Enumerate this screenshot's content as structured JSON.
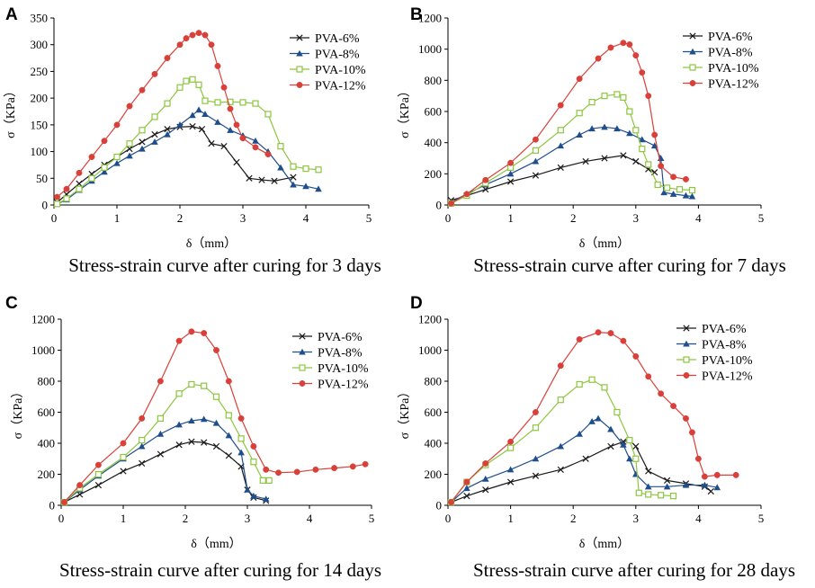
{
  "figure": {
    "series_colors": {
      "PVA-6%": "#1a1a1a",
      "PVA-8%": "#1f4e8c",
      "PVA-10%": "#8dc63f",
      "PVA-12%": "#d9403a"
    },
    "series_markers": {
      "PVA-6%": "cross",
      "PVA-8%": "triangle",
      "PVA-10%": "square",
      "PVA-12%": "circle"
    }
  },
  "chart_data": [
    {
      "type": "line",
      "panel": "A",
      "title": "Stress-strain curve after curing for 3 days",
      "xlabel": "δ（mm）",
      "ylabel": "σ（KPa）",
      "xlim": [
        0,
        5
      ],
      "ylim": [
        0,
        350
      ],
      "xticks": [
        0,
        1,
        2,
        3,
        4,
        5
      ],
      "yticks": [
        0,
        50,
        100,
        150,
        200,
        250,
        300,
        350
      ],
      "legend_position": "top-right",
      "series": [
        {
          "name": "PVA-6%",
          "x": [
            0.05,
            0.2,
            0.4,
            0.6,
            0.8,
            1.0,
            1.2,
            1.4,
            1.6,
            1.8,
            2.0,
            2.2,
            2.35,
            2.5,
            2.7,
            2.9,
            3.1,
            3.3,
            3.5,
            3.8
          ],
          "y": [
            5,
            20,
            40,
            58,
            75,
            90,
            105,
            118,
            132,
            142,
            146,
            147,
            142,
            115,
            110,
            80,
            50,
            47,
            45,
            52
          ]
        },
        {
          "name": "PVA-8%",
          "x": [
            0.05,
            0.2,
            0.4,
            0.6,
            0.8,
            1.0,
            1.2,
            1.4,
            1.6,
            1.8,
            2.0,
            2.2,
            2.3,
            2.4,
            2.6,
            2.8,
            3.0,
            3.2,
            3.4,
            3.6,
            3.8,
            4.0,
            4.2
          ],
          "y": [
            2,
            10,
            28,
            45,
            62,
            78,
            92,
            105,
            118,
            132,
            150,
            168,
            178,
            170,
            155,
            140,
            130,
            120,
            100,
            70,
            38,
            35,
            30
          ]
        },
        {
          "name": "PVA-10%",
          "x": [
            0.05,
            0.2,
            0.4,
            0.6,
            0.8,
            1.0,
            1.2,
            1.4,
            1.6,
            1.8,
            2.0,
            2.1,
            2.2,
            2.3,
            2.4,
            2.6,
            2.8,
            3.0,
            3.2,
            3.4,
            3.6,
            3.8,
            4.0,
            4.2
          ],
          "y": [
            2,
            12,
            30,
            50,
            70,
            90,
            115,
            140,
            165,
            190,
            220,
            232,
            235,
            225,
            195,
            192,
            193,
            192,
            190,
            170,
            110,
            72,
            68,
            66
          ]
        },
        {
          "name": "PVA-12%",
          "x": [
            0.05,
            0.2,
            0.4,
            0.6,
            0.8,
            1.0,
            1.2,
            1.4,
            1.6,
            1.8,
            2.0,
            2.1,
            2.2,
            2.3,
            2.4,
            2.5,
            2.6,
            2.7,
            2.8,
            2.9,
            3.0,
            3.2,
            3.4
          ],
          "y": [
            15,
            30,
            60,
            90,
            120,
            150,
            185,
            215,
            245,
            275,
            300,
            312,
            318,
            322,
            318,
            300,
            260,
            220,
            180,
            150,
            125,
            108,
            95
          ]
        }
      ]
    },
    {
      "type": "line",
      "panel": "B",
      "title": "Stress-strain curve after curing for 7 days",
      "xlabel": "δ（mm）",
      "ylabel": "σ（KPa）",
      "xlim": [
        0,
        5
      ],
      "ylim": [
        0,
        1200
      ],
      "xticks": [
        0,
        1,
        2,
        3,
        4,
        5
      ],
      "yticks": [
        0,
        200,
        400,
        600,
        800,
        1000,
        1200
      ],
      "legend_position": "top-right",
      "series": [
        {
          "name": "PVA-6%",
          "x": [
            0.05,
            0.3,
            0.6,
            1.0,
            1.4,
            1.8,
            2.2,
            2.5,
            2.8,
            3.0,
            3.2,
            3.3
          ],
          "y": [
            30,
            60,
            100,
            150,
            190,
            240,
            280,
            300,
            318,
            280,
            230,
            210
          ]
        },
        {
          "name": "PVA-8%",
          "x": [
            0.05,
            0.3,
            0.6,
            1.0,
            1.4,
            1.8,
            2.1,
            2.3,
            2.5,
            2.7,
            2.9,
            3.1,
            3.3,
            3.4,
            3.45,
            3.6,
            3.8,
            3.9
          ],
          "y": [
            20,
            70,
            130,
            200,
            280,
            380,
            450,
            490,
            500,
            490,
            460,
            420,
            380,
            300,
            80,
            70,
            60,
            55
          ]
        },
        {
          "name": "PVA-10%",
          "x": [
            0.05,
            0.3,
            0.6,
            1.0,
            1.4,
            1.8,
            2.1,
            2.3,
            2.5,
            2.7,
            2.8,
            2.9,
            3.0,
            3.1,
            3.2,
            3.35,
            3.5,
            3.7,
            3.9
          ],
          "y": [
            10,
            60,
            140,
            240,
            350,
            480,
            590,
            660,
            700,
            710,
            690,
            600,
            480,
            360,
            260,
            130,
            110,
            100,
            95
          ]
        },
        {
          "name": "PVA-12%",
          "x": [
            0.05,
            0.3,
            0.6,
            1.0,
            1.4,
            1.8,
            2.1,
            2.4,
            2.6,
            2.8,
            2.9,
            3.0,
            3.1,
            3.2,
            3.3,
            3.4,
            3.6,
            3.8
          ],
          "y": [
            10,
            70,
            160,
            270,
            420,
            640,
            810,
            940,
            1010,
            1040,
            1030,
            960,
            850,
            700,
            450,
            250,
            180,
            165
          ]
        }
      ]
    },
    {
      "type": "line",
      "panel": "C",
      "title": "Stress-strain curve after curing for 14 days",
      "xlabel": "δ（mm）",
      "ylabel": "σ（KPa）",
      "xlim": [
        0,
        5
      ],
      "ylim": [
        0,
        1200
      ],
      "xticks": [
        0,
        1,
        2,
        3,
        4,
        5
      ],
      "yticks": [
        0,
        200,
        400,
        600,
        800,
        1000,
        1200
      ],
      "legend_position": "top-right",
      "series": [
        {
          "name": "PVA-6%",
          "x": [
            0.05,
            0.3,
            0.6,
            1.0,
            1.3,
            1.6,
            1.9,
            2.1,
            2.3,
            2.5,
            2.7,
            2.9,
            3.0,
            3.1,
            3.3
          ],
          "y": [
            20,
            70,
            130,
            220,
            270,
            330,
            390,
            410,
            405,
            380,
            320,
            250,
            100,
            50,
            30
          ]
        },
        {
          "name": "PVA-8%",
          "x": [
            0.05,
            0.3,
            0.6,
            1.0,
            1.3,
            1.6,
            1.9,
            2.1,
            2.3,
            2.5,
            2.7,
            2.9,
            3.0,
            3.1,
            3.3
          ],
          "y": [
            20,
            100,
            190,
            300,
            380,
            460,
            520,
            545,
            555,
            530,
            450,
            340,
            100,
            60,
            40
          ]
        },
        {
          "name": "PVA-10%",
          "x": [
            0.05,
            0.3,
            0.6,
            1.0,
            1.3,
            1.6,
            1.9,
            2.1,
            2.3,
            2.5,
            2.7,
            2.9,
            3.1,
            3.25,
            3.35
          ],
          "y": [
            20,
            110,
            200,
            310,
            420,
            560,
            720,
            780,
            770,
            700,
            580,
            430,
            280,
            160,
            160
          ]
        },
        {
          "name": "PVA-12%",
          "x": [
            0.05,
            0.3,
            0.6,
            1.0,
            1.3,
            1.6,
            1.9,
            2.1,
            2.3,
            2.5,
            2.7,
            2.9,
            3.1,
            3.3,
            3.5,
            3.8,
            4.1,
            4.4,
            4.7,
            4.9
          ],
          "y": [
            20,
            130,
            260,
            400,
            560,
            800,
            1060,
            1120,
            1110,
            1000,
            800,
            560,
            380,
            230,
            210,
            215,
            230,
            240,
            250,
            265
          ]
        }
      ]
    },
    {
      "type": "line",
      "panel": "D",
      "title": "Stress-strain curve after curing for 28 days",
      "xlabel": "δ（mm）",
      "ylabel": "σ（KPa）",
      "xlim": [
        0,
        5
      ],
      "ylim": [
        0,
        1200
      ],
      "xticks": [
        0,
        1,
        2,
        3,
        4,
        5
      ],
      "yticks": [
        0,
        200,
        400,
        600,
        800,
        1000,
        1200
      ],
      "legend_position": "top-right",
      "series": [
        {
          "name": "PVA-6%",
          "x": [
            0.05,
            0.3,
            0.6,
            1.0,
            1.4,
            1.8,
            2.2,
            2.6,
            2.8,
            2.9,
            3.0,
            3.2,
            3.5,
            3.8,
            4.1,
            4.2
          ],
          "y": [
            20,
            60,
            100,
            150,
            190,
            230,
            300,
            380,
            410,
            420,
            380,
            220,
            160,
            140,
            120,
            90
          ]
        },
        {
          "name": "PVA-8%",
          "x": [
            0.05,
            0.3,
            0.6,
            1.0,
            1.4,
            1.8,
            2.1,
            2.3,
            2.4,
            2.6,
            2.8,
            2.9,
            3.0,
            3.2,
            3.5,
            3.8,
            4.1,
            4.3
          ],
          "y": [
            20,
            110,
            170,
            230,
            300,
            380,
            460,
            540,
            560,
            490,
            390,
            300,
            200,
            120,
            120,
            130,
            130,
            115
          ]
        },
        {
          "name": "PVA-10%",
          "x": [
            0.05,
            0.3,
            0.6,
            1.0,
            1.4,
            1.8,
            2.1,
            2.3,
            2.5,
            2.7,
            2.9,
            3.0,
            3.05,
            3.2,
            3.4,
            3.6
          ],
          "y": [
            20,
            150,
            260,
            370,
            500,
            680,
            780,
            810,
            760,
            600,
            420,
            300,
            80,
            70,
            65,
            60
          ]
        },
        {
          "name": "PVA-12%",
          "x": [
            0.05,
            0.3,
            0.6,
            1.0,
            1.4,
            1.8,
            2.1,
            2.4,
            2.6,
            2.8,
            3.0,
            3.2,
            3.4,
            3.6,
            3.8,
            3.9,
            4.0,
            4.1,
            4.3,
            4.6
          ],
          "y": [
            20,
            150,
            270,
            410,
            600,
            900,
            1070,
            1115,
            1110,
            1060,
            960,
            830,
            720,
            640,
            560,
            470,
            300,
            185,
            195,
            195
          ]
        }
      ]
    }
  ]
}
